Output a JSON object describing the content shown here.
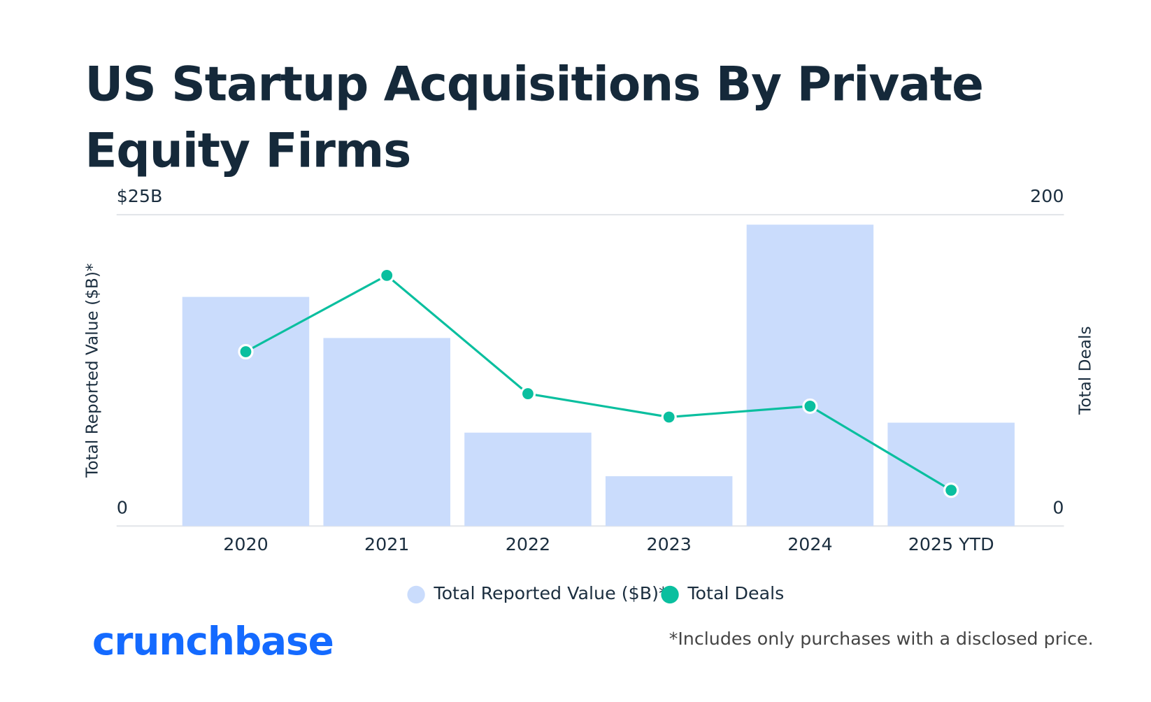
{
  "chart_data": {
    "type": "bar_line",
    "title": "US Startup Acquisitions By Private Equity Firms",
    "categories": [
      "2020",
      "2021",
      "2022",
      "2023",
      "2024",
      "2025 YTD"
    ],
    "series": [
      {
        "name": "Total Reported Value ($B)*",
        "type": "bar",
        "color": "#cadcfc",
        "values": [
          18.4,
          15.1,
          7.5,
          4.0,
          24.2,
          8.3
        ]
      },
      {
        "name": "Total Deals",
        "type": "line",
        "axis": "y2",
        "color": "#0abf9f",
        "values": [
          112,
          161,
          85,
          70,
          77,
          23
        ]
      }
    ],
    "y_label": "Total Reported Value ($B)*",
    "y2_label": "Total Deals",
    "ylim": [
      0,
      25
    ],
    "yticks": [
      0,
      {
        "value": 25,
        "label": "$25B"
      }
    ],
    "y2lim": [
      0,
      200
    ],
    "y2ticks": [
      0,
      200
    ],
    "legend": "bottom",
    "footnote": "*Includes only purchases with a disclosed price.",
    "brand": "crunchbase"
  }
}
